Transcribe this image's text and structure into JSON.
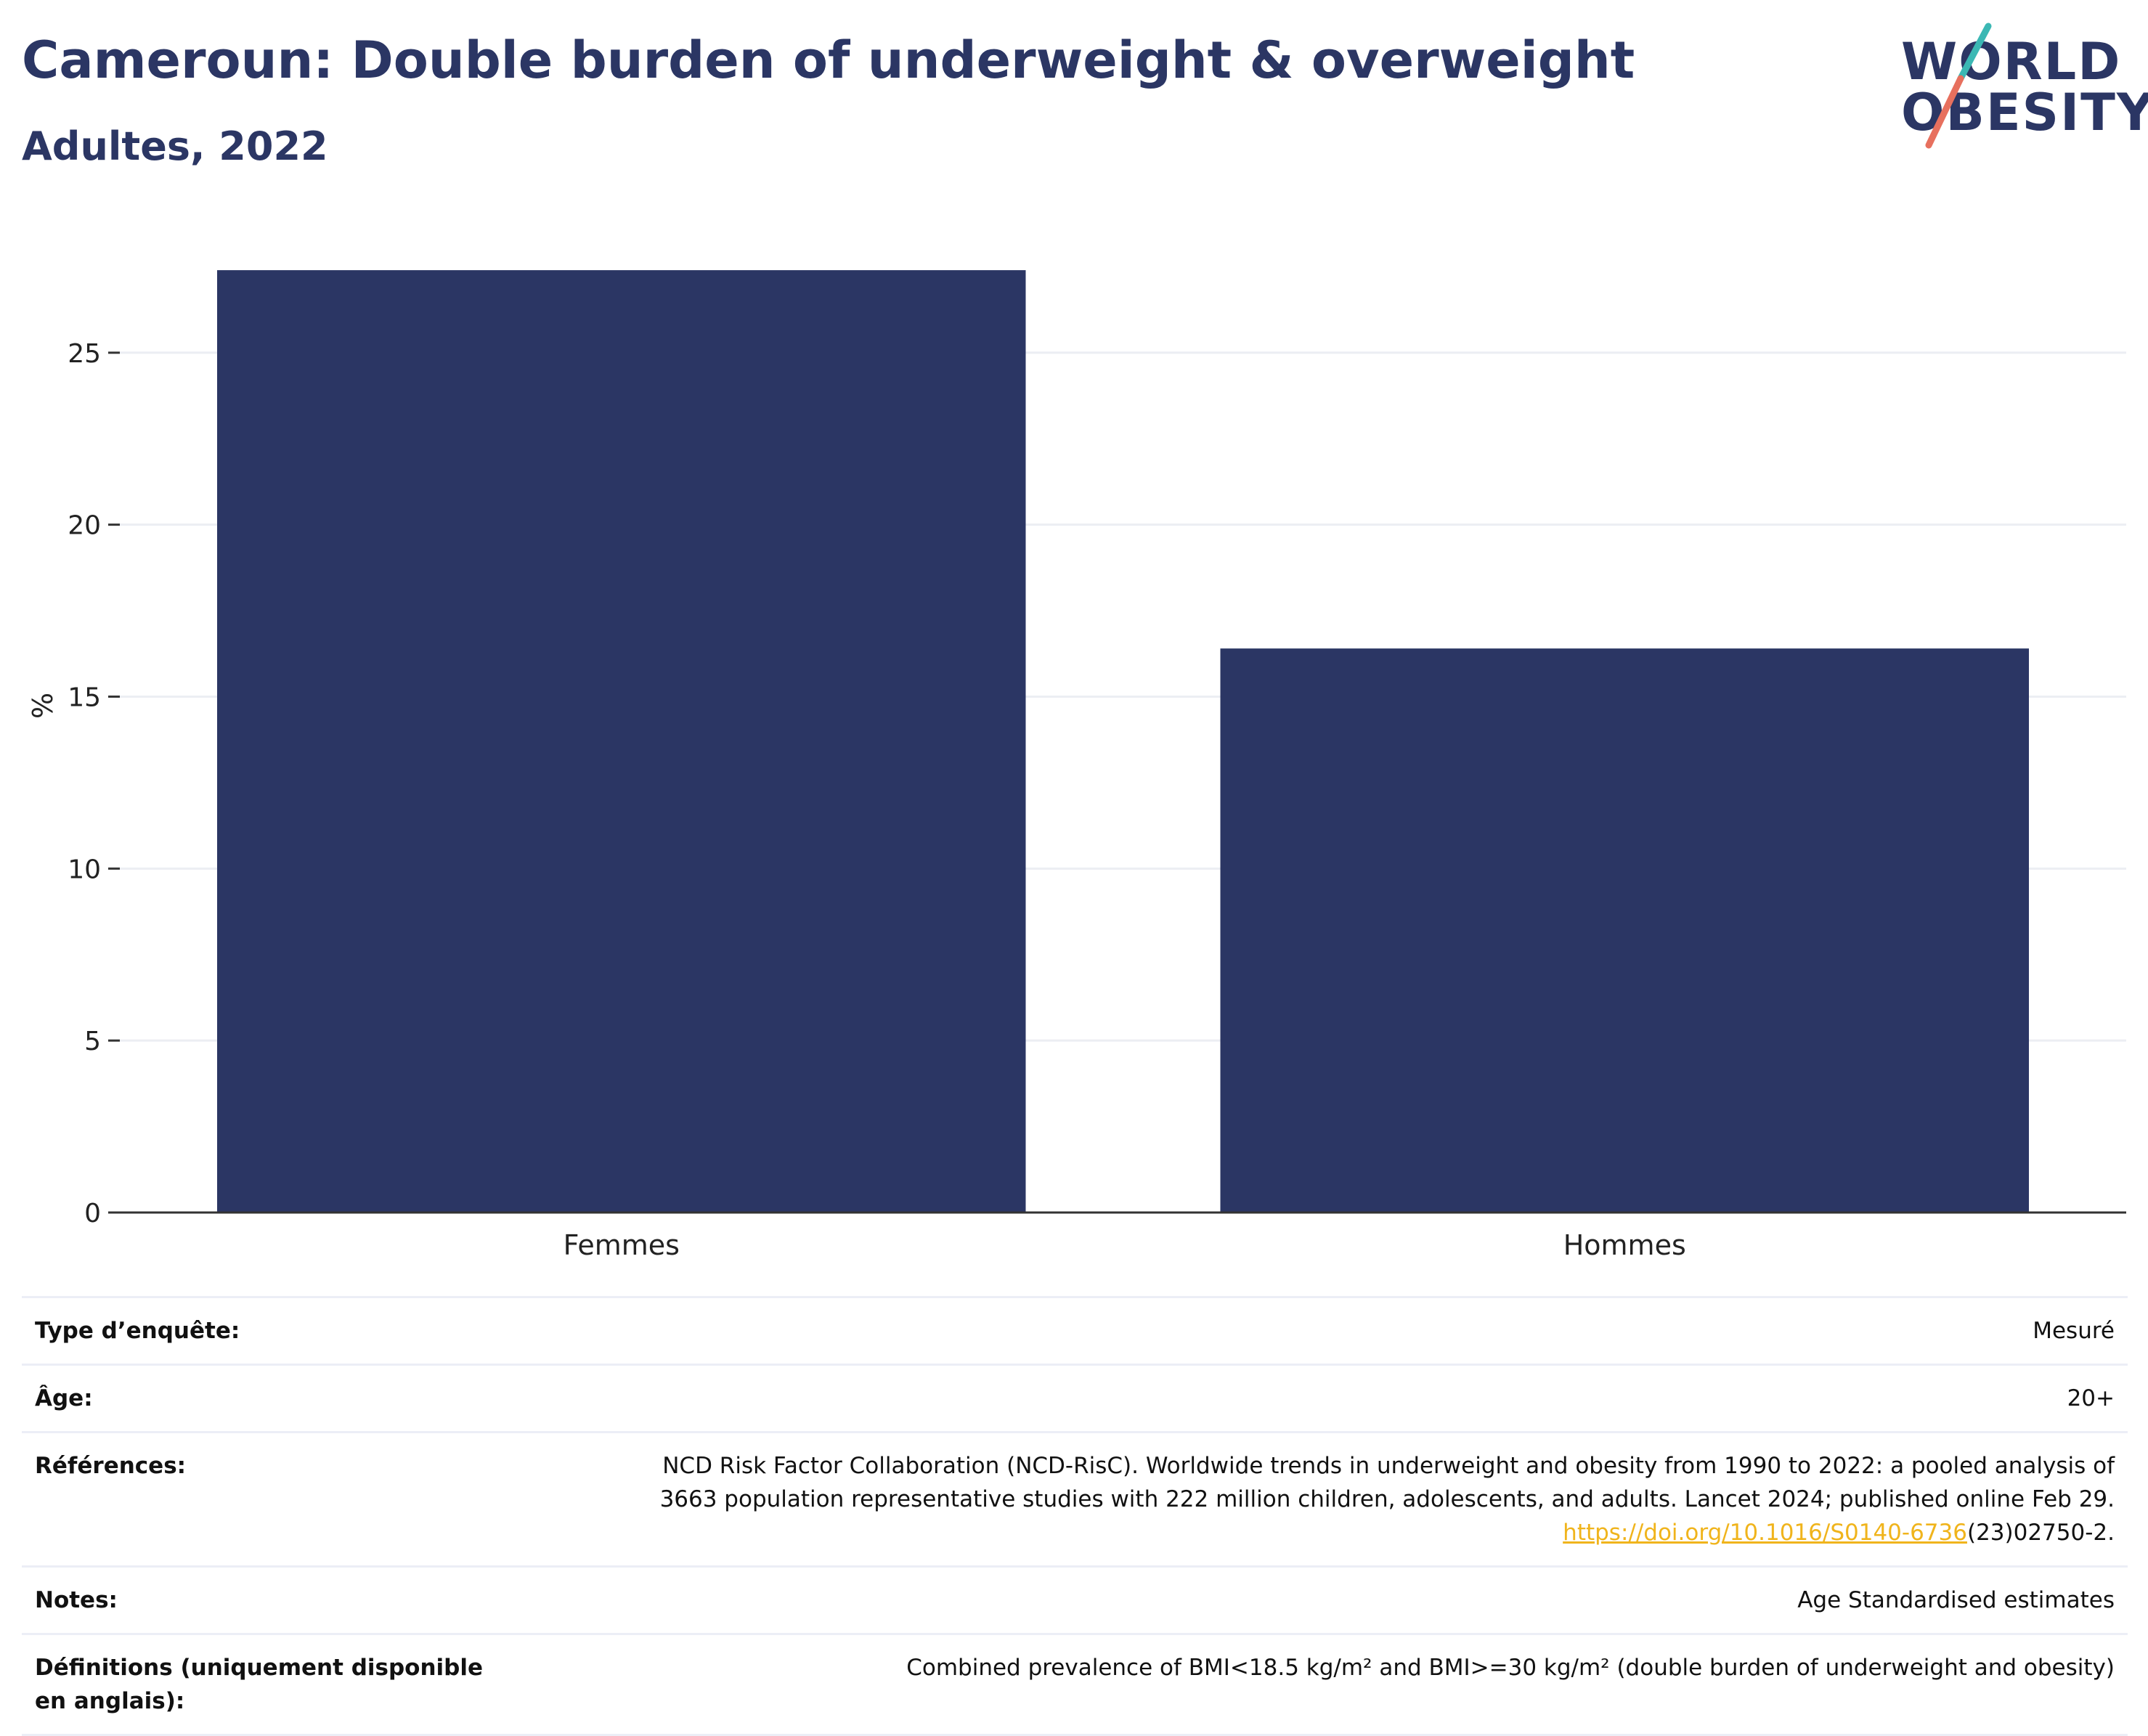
{
  "header": {
    "title": "Cameroun: Double burden of underweight & overweight",
    "subtitle": "Adultes, 2022"
  },
  "logo": {
    "line1": "WORLD",
    "line2": "OBESITY",
    "colors": {
      "text": "#2b3664",
      "slash_top": "#3bb8b4",
      "slash_bottom": "#e7705e"
    }
  },
  "colors": {
    "bar": "#2b3664",
    "grid": "#eceef3",
    "axis": "#333333",
    "link": "#f0b41c"
  },
  "chart_data": {
    "type": "bar",
    "categories": [
      "Femmes",
      "Hommes"
    ],
    "values": [
      27.4,
      16.4
    ],
    "ylabel": "%",
    "xlabel": "",
    "ylim": [
      0,
      28.5
    ],
    "yticks": [
      0,
      5,
      10,
      15,
      20,
      25
    ],
    "grid": true
  },
  "meta": {
    "survey_label": "Type d’enquête:",
    "survey_value": "Mesuré",
    "age_label": "Âge:",
    "age_value": "20+",
    "references_label": "Références:",
    "references_line1": "NCD Risk Factor Collaboration (NCD-RisC). Worldwide trends in underweight and obesity from 1990 to 2022: a pooled analysis of",
    "references_line2": "3663 population representative studies with 222 million children, adolescents, and adults. Lancet 2024; published online Feb 29.",
    "references_link": "https://doi.org/10.1016/S0140-6736",
    "references_tail": "(23)02750-2.",
    "notes_label": "Notes:",
    "notes_value": "Age Standardised estimates",
    "definitions_label": "Définitions (uniquement disponible en anglais):",
    "definitions_value": "Combined prevalence of BMI<18.5 kg/m² and BMI>=30 kg/m² (double burden of underweight and obesity)"
  }
}
